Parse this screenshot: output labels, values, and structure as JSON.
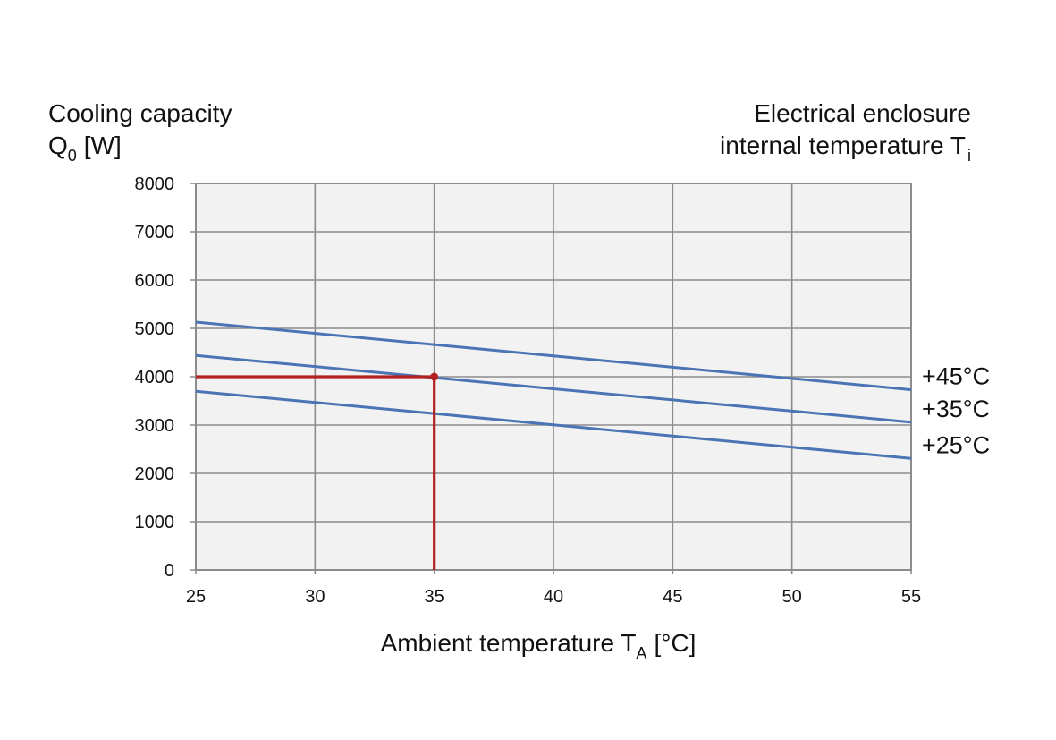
{
  "chart_data": {
    "type": "line",
    "ylabel": {
      "line1": "Cooling capacity",
      "symbol": "Q",
      "subscript": "0",
      "unit": "[W]"
    },
    "legend_title": {
      "line1": "Electrical enclosure",
      "line2": "internal temperature T",
      "subscript": "i"
    },
    "xlabel": {
      "text": "Ambient temperature T",
      "subscript": "A",
      "unit": "[°C]"
    },
    "x_ticks": [
      "25",
      "30",
      "35",
      "40",
      "45",
      "50",
      "55"
    ],
    "y_ticks": [
      "0",
      "1000",
      "2000",
      "3000",
      "4000",
      "5000",
      "6000",
      "7000",
      "8000"
    ],
    "xlim": [
      25,
      55
    ],
    "ylim": [
      0,
      8000
    ],
    "grid": true,
    "series": [
      {
        "name": "+45°C",
        "x": [
          25,
          55
        ],
        "y": [
          5130,
          3730
        ],
        "color": "#4a74b4"
      },
      {
        "name": "+35°C",
        "x": [
          25,
          55
        ],
        "y": [
          4440,
          3060
        ],
        "color": "#4a74b4"
      },
      {
        "name": "+25°C",
        "x": [
          25,
          55
        ],
        "y": [
          3700,
          2310
        ],
        "color": "#4a74b4"
      }
    ],
    "example_readout": {
      "x": 35,
      "y": 4000,
      "color": "#b22222"
    },
    "colors": {
      "plot_background": "#f2f2f2",
      "grid": "#8c8c8c"
    }
  }
}
